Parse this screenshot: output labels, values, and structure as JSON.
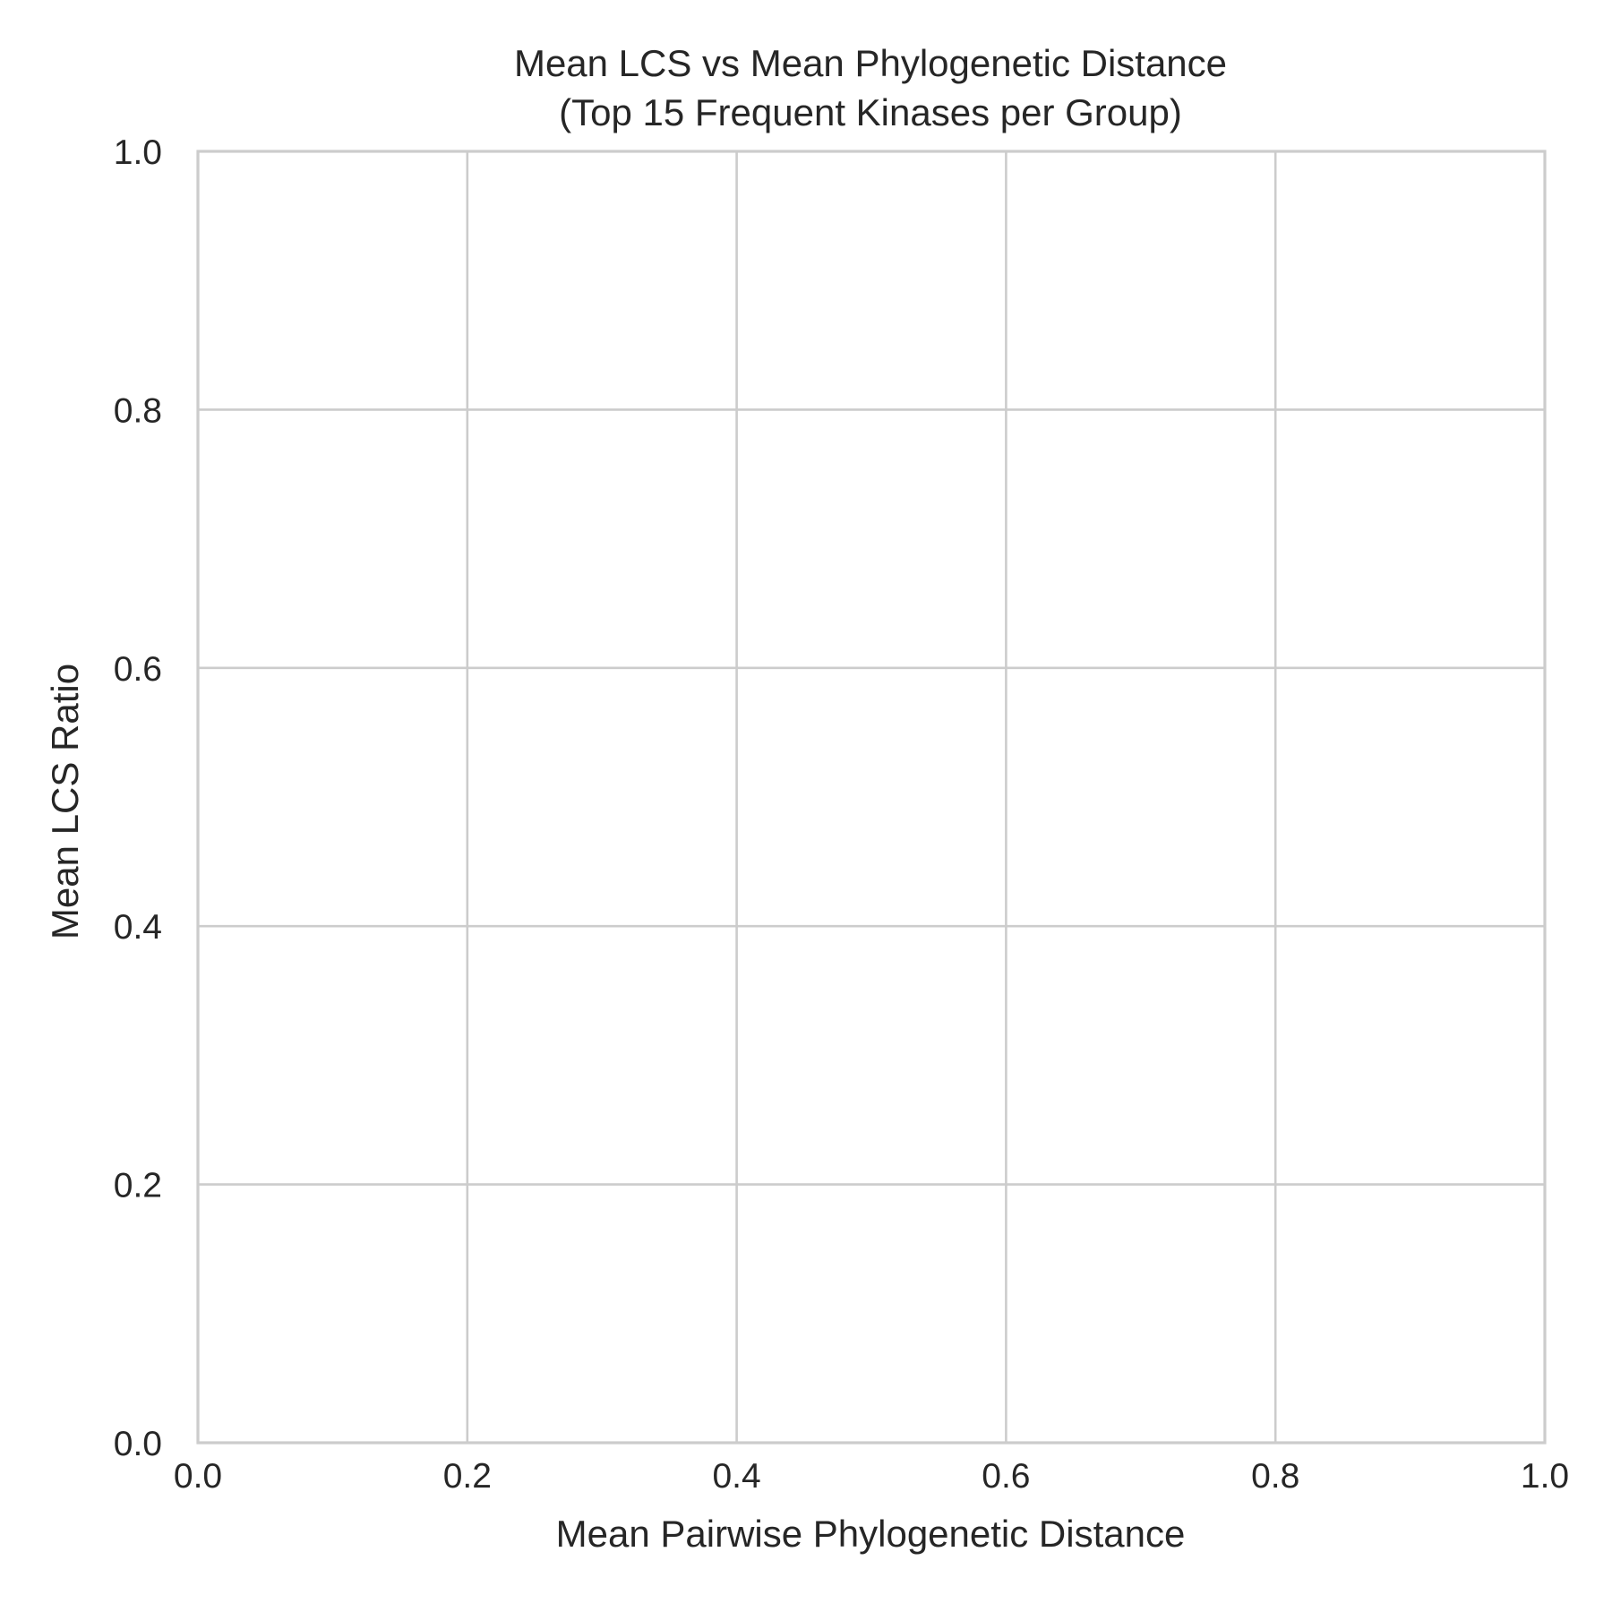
{
  "chart_data": {
    "type": "scatter",
    "title": "Mean LCS vs Mean Phylogenetic Distance",
    "subtitle": "(Top 15 Frequent Kinases per Group)",
    "xlabel": "Mean Pairwise Phylogenetic Distance",
    "ylabel": "Mean LCS Ratio",
    "xlim": [
      0.0,
      1.0
    ],
    "ylim": [
      0.0,
      1.0
    ],
    "xticks": [
      "0.0",
      "0.2",
      "0.4",
      "0.6",
      "0.8",
      "1.0"
    ],
    "yticks": [
      "0.0",
      "0.2",
      "0.4",
      "0.6",
      "0.8",
      "1.0"
    ],
    "grid": true,
    "series": [],
    "colors": {
      "grid": "#cccccc",
      "text": "#262626",
      "background": "#ffffff"
    }
  }
}
